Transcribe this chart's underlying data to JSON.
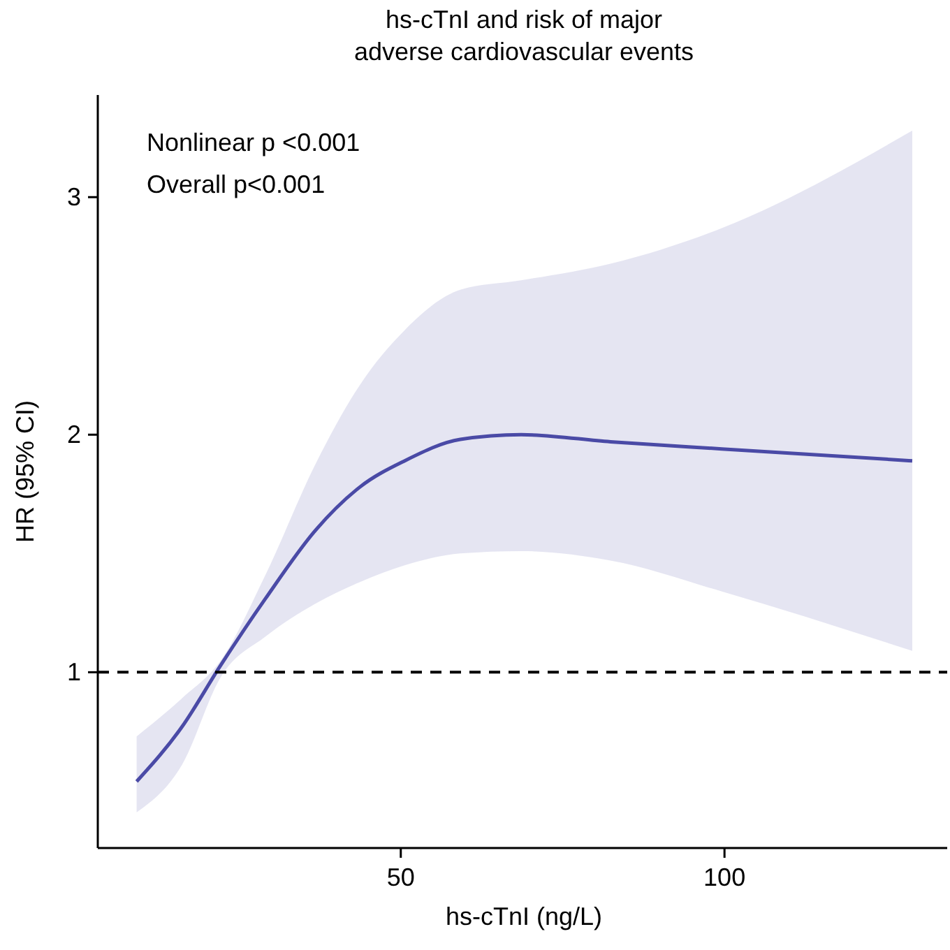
{
  "chart_data": {
    "type": "line",
    "title": "hs-cTnI and risk of major\nadverse cardiovascular events",
    "xlabel": "hs-cTnI (ng/L)",
    "ylabel": "HR (95% CI)",
    "xlim": [
      3.2,
      134.4
    ],
    "xticks": [
      50,
      100
    ],
    "ylim": [
      0.26,
      3.43
    ],
    "yticks": [
      1,
      2,
      3
    ],
    "series": [
      {
        "color": "#4a4aa6",
        "x": [
          9.2,
          16.2,
          22.2,
          29.1,
          36.9,
          43.7,
          50.6,
          59.2,
          68.6,
          82.4,
          99.6,
          129.0
        ],
        "values": [
          0.54,
          0.77,
          1.03,
          1.31,
          1.6,
          1.78,
          1.89,
          1.98,
          2.0,
          1.97,
          1.94,
          1.89
        ],
        "lower": [
          0.41,
          0.61,
          0.98,
          1.15,
          1.29,
          1.38,
          1.45,
          1.5,
          1.51,
          1.47,
          1.34,
          1.09
        ],
        "upper": [
          0.73,
          0.89,
          1.05,
          1.41,
          1.88,
          2.21,
          2.44,
          2.61,
          2.65,
          2.72,
          2.87,
          3.28
        ]
      }
    ],
    "ref_lines": [
      {
        "axis": "y",
        "value": 1,
        "line_style": "dashed",
        "color": "#000000"
      }
    ],
    "annotations": [
      "Nonlinear p <0.001",
      "Overall p<0.001"
    ],
    "grid": false
  }
}
